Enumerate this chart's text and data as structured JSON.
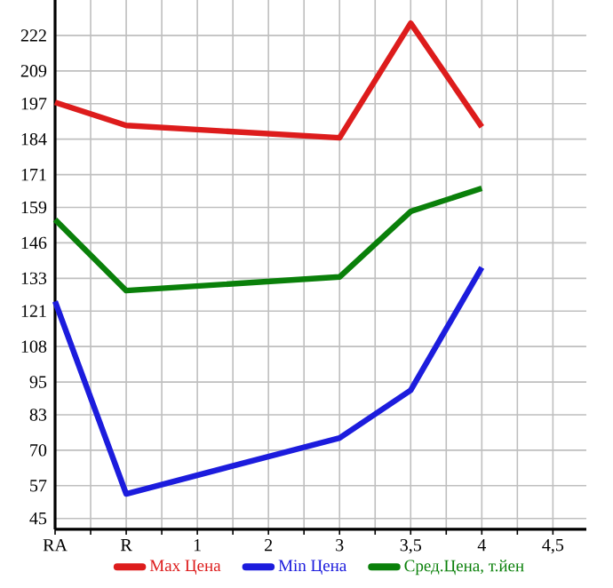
{
  "chart_data": {
    "type": "line",
    "categories": [
      "RA",
      "R",
      "1",
      "2",
      "3",
      "3,5",
      "4",
      "4,5"
    ],
    "series": [
      {
        "name": "Max Цена",
        "color": "#dd1c1c",
        "values": [
          197.5,
          189,
          null,
          null,
          184.5,
          226.5,
          188.5,
          null
        ]
      },
      {
        "name": "Min Цена",
        "color": "#1c1cdd",
        "values": [
          124.5,
          54,
          null,
          null,
          74.5,
          92,
          137,
          null
        ]
      },
      {
        "name": "Сред.Цена, т.йен",
        "color": "#0a800a",
        "values": [
          154.5,
          128.5,
          null,
          null,
          133.5,
          157.5,
          166,
          null
        ]
      }
    ],
    "ylim": [
      41,
      235
    ],
    "yticks": [
      45,
      57,
      70,
      83,
      95,
      108,
      121,
      133,
      146,
      159,
      171,
      184,
      197,
      209,
      222
    ],
    "grid": true,
    "legend": "bottom",
    "marker": "none",
    "line_style": "solid"
  }
}
